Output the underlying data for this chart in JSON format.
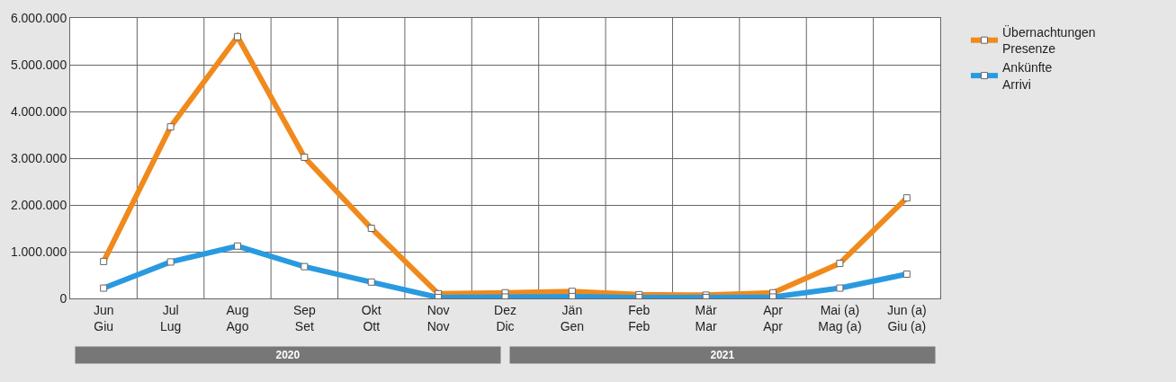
{
  "chart_data": {
    "type": "line",
    "categories": [
      "Jun\nGiu",
      "Jul\nLug",
      "Aug\nAgo",
      "Sep\nSet",
      "Okt\nOtt",
      "Nov\nNov",
      "Dez\nDic",
      "Jän\nGen",
      "Feb\nFeb",
      "Mär\nMar",
      "Apr\nApr",
      "Mai (a)\nMag (a)",
      "Jun (a)\nGiu (a)"
    ],
    "series": [
      {
        "name": "Übernachtungen\nPresenze",
        "color": "#f08a1c",
        "values": [
          790000,
          3670000,
          5600000,
          3020000,
          1500000,
          100000,
          120000,
          150000,
          80000,
          70000,
          120000,
          750000,
          2150000
        ]
      },
      {
        "name": "Ankünfte\nArrivi",
        "color": "#2a9ae0",
        "values": [
          220000,
          780000,
          1120000,
          680000,
          350000,
          20000,
          30000,
          40000,
          20000,
          20000,
          30000,
          220000,
          520000
        ]
      }
    ],
    "ylim": [
      0,
      6000000
    ],
    "yticks": [
      {
        "value": 0,
        "label": "0"
      },
      {
        "value": 1000000,
        "label": "1.000.000"
      },
      {
        "value": 2000000,
        "label": "2.000.000"
      },
      {
        "value": 3000000,
        "label": "3.000.000"
      },
      {
        "value": 4000000,
        "label": "4.000.000"
      },
      {
        "value": 5000000,
        "label": "5.000.000"
      },
      {
        "value": 6000000,
        "label": "6.000.000"
      }
    ],
    "annotations": [
      "2020",
      "2021"
    ],
    "grid": true,
    "legend": "top right",
    "marker": "square",
    "line_style": "solid"
  }
}
